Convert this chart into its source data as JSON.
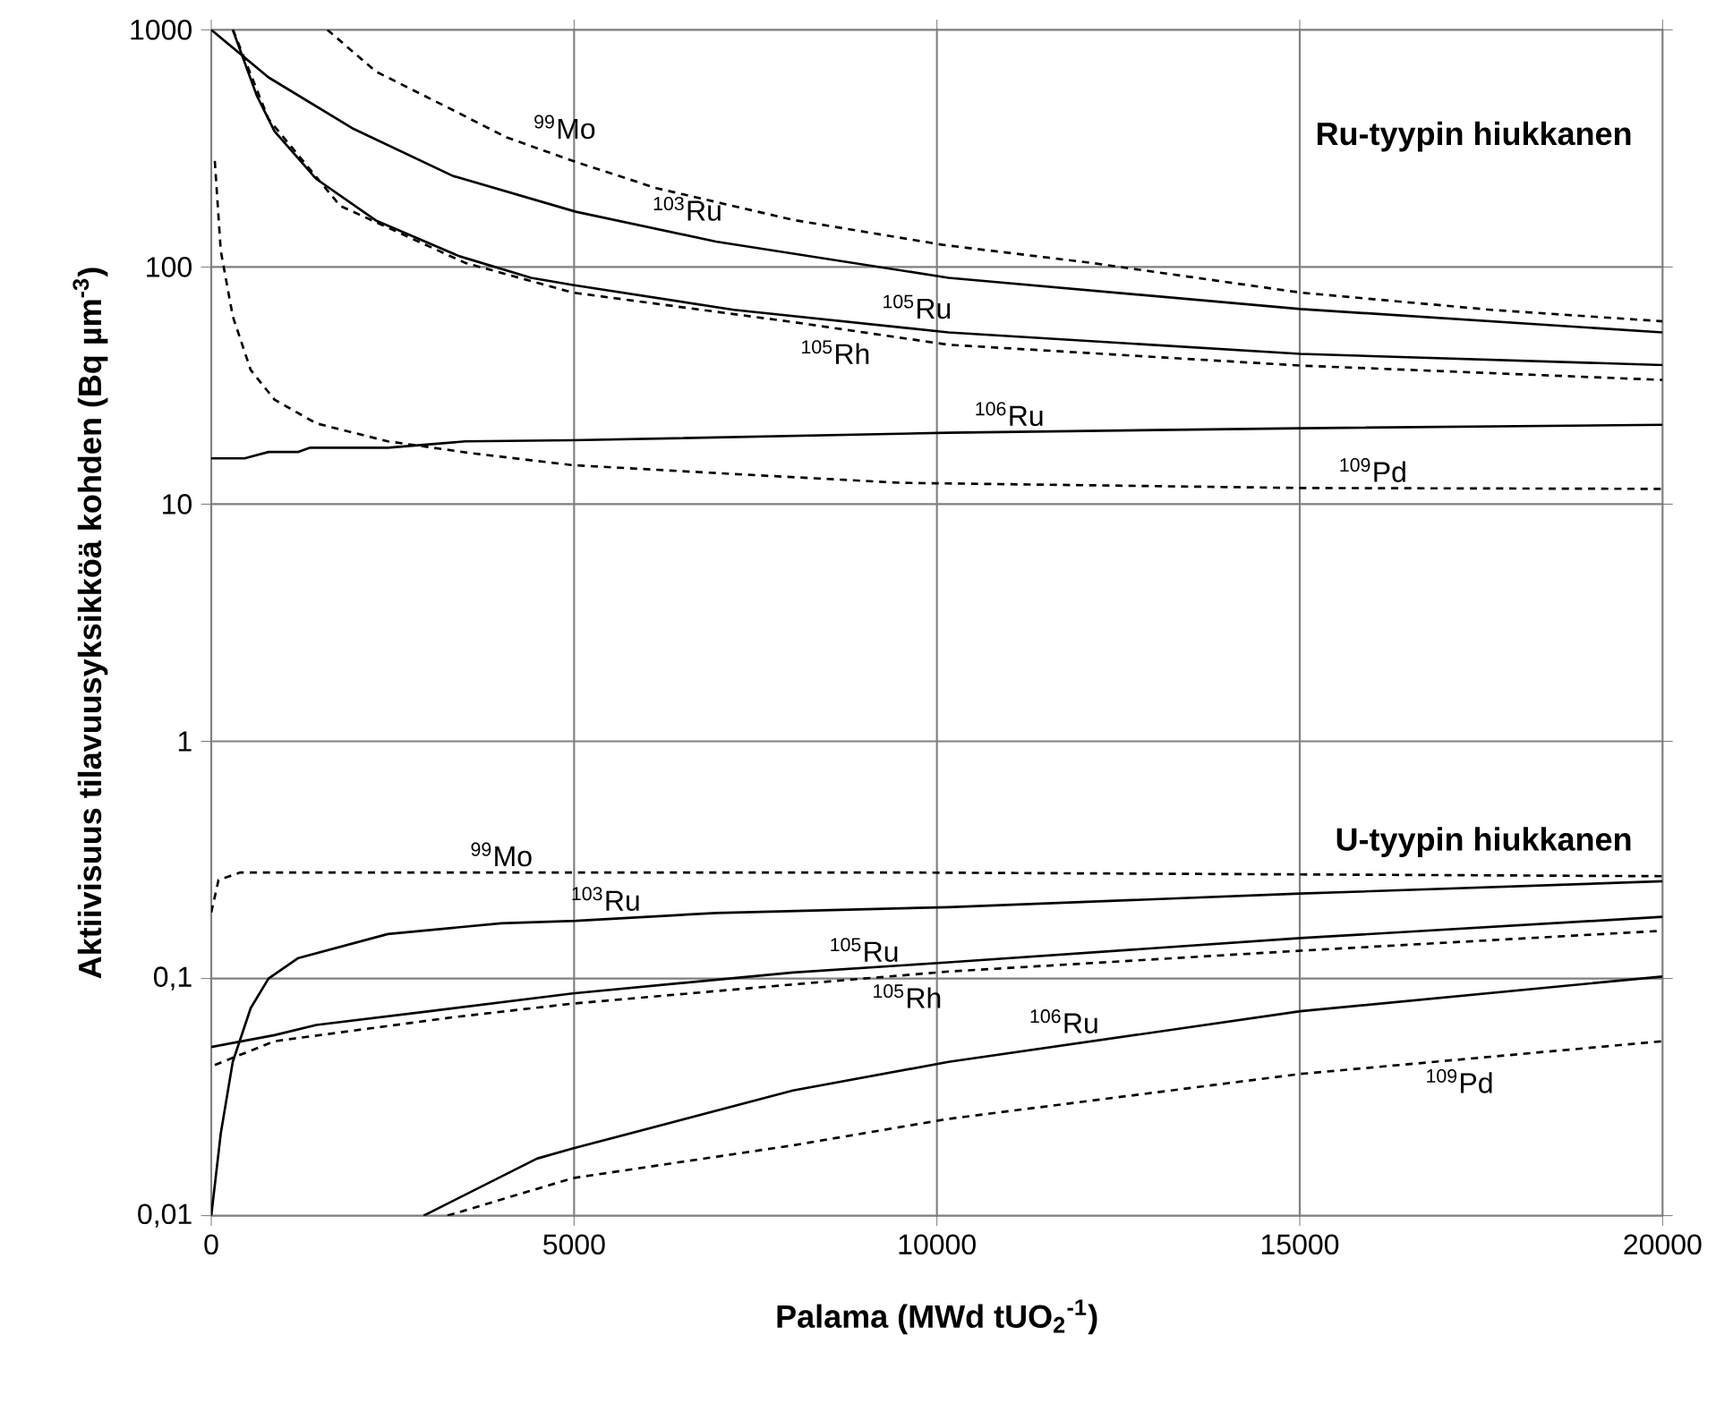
{
  "chart_data": {
    "type": "line",
    "xlabel": "Palama (MWd tUO$_{2}$$^{-1}$)",
    "ylabel": "Aktiivisuus tilavuusyksikköä kohden (Bq µm$^{-3}$)",
    "log": "y",
    "grid": true,
    "legend": false,
    "marker": "none",
    "xlim": [
      0,
      20000
    ],
    "xticks": [
      0,
      5000,
      10000,
      15000,
      20000
    ],
    "ylim": [
      0.01,
      1000
    ],
    "yticks": [
      {
        "value": 0.01,
        "label": "0,01"
      },
      {
        "value": 0.1,
        "label": "0,1"
      },
      1,
      10,
      100,
      1000
    ],
    "series": [
      {
        "name": "$^{99}$Mo",
        "color": "#000000",
        "line_style": "dashed",
        "x": [
          1600,
          2269,
          3255,
          4070,
          4982,
          6133,
          8015,
          10080,
          12133,
          15010,
          17632,
          20000
        ],
        "values": [
          1000,
          667,
          471,
          352,
          280,
          215,
          158,
          124,
          104,
          78,
          66,
          59
        ]
      },
      {
        "name": "$^{103}$Ru",
        "color": "#000000",
        "line_style": "solid",
        "x": [
          0,
          789,
          1941,
          3330,
          5023,
          6955,
          10160,
          15010,
          20000
        ],
        "values": [
          1000,
          630,
          385,
          242,
          171,
          128,
          90,
          66.5,
          53
        ]
      },
      {
        "name": "$^{105}$Ru",
        "color": "#000000",
        "line_style": "solid",
        "x": [
          296,
          625,
          871,
          1448,
          2269,
          3420,
          4407,
          4982,
          7200,
          10160,
          15010,
          20000
        ],
        "values": [
          1000,
          530,
          374,
          235,
          157,
          111,
          90,
          84,
          66,
          53,
          43,
          38.6
        ]
      },
      {
        "name": "$^{105}$Rh",
        "color": "#000000",
        "line_style": "dashed",
        "x": [
          300,
          789,
          1776,
          3502,
          4982,
          8015,
          10160,
          15010,
          20000
        ],
        "values": [
          1000,
          420,
          181,
          104,
          78,
          58.6,
          47,
          38.4,
          33.4
        ]
      },
      {
        "name": "$^{106}$Ru",
        "color": "#000000",
        "line_style": "solid",
        "x": [
          0,
          460,
          789,
          1200,
          1364,
          2434,
          3502,
          4982,
          10160,
          15010,
          20000
        ],
        "values": [
          15.6,
          15.6,
          16.6,
          16.6,
          17.3,
          17.3,
          18.4,
          18.6,
          20,
          20.9,
          21.6
        ]
      },
      {
        "name": "$^{109}$Pd",
        "color": "#000000",
        "line_style": "dashed",
        "x": [
          49,
          131,
          296,
          543,
          871,
          1448,
          2434,
          3585,
          4982,
          7200,
          9500,
          15010,
          20000
        ],
        "values": [
          280,
          117,
          62,
          36.8,
          27.6,
          21.9,
          18.4,
          16.4,
          14.6,
          13.4,
          12.3,
          11.7,
          11.6
        ]
      },
      {
        "name": "$^{99}$Mo",
        "color": "#000000",
        "line_style": "dashed",
        "x": [
          0,
          100,
          400,
          9420,
          20000
        ],
        "values": [
          0.19,
          0.26,
          0.28,
          0.28,
          0.27
        ]
      },
      {
        "name": "$^{103}$Ru",
        "color": "#000000",
        "line_style": "solid",
        "x": [
          0,
          131,
          296,
          543,
          789,
          1200,
          2434,
          3995,
          5023,
          6955,
          10160,
          15010,
          20000
        ],
        "values": [
          0.01,
          0.0222,
          0.0445,
          0.075,
          0.1,
          0.122,
          0.154,
          0.171,
          0.175,
          0.189,
          0.2,
          0.228,
          0.257
        ]
      },
      {
        "name": "$^{105}$Ru",
        "color": "#000000",
        "line_style": "solid",
        "x": [
          0,
          296,
          871,
          1448,
          3009,
          4982,
          8015,
          10160,
          15010,
          20000
        ],
        "values": [
          0.0514,
          0.0535,
          0.0577,
          0.0637,
          0.0728,
          0.0865,
          0.106,
          0.117,
          0.148,
          0.182
        ]
      },
      {
        "name": "$^{105}$Rh",
        "color": "#000000",
        "line_style": "dashed",
        "x": [
          49,
          871,
          3338,
          4982,
          8015,
          10160,
          15010,
          20000
        ],
        "values": [
          0.0432,
          0.0544,
          0.0687,
          0.0784,
          0.0944,
          0.107,
          0.131,
          0.159
        ]
      },
      {
        "name": "$^{106}$Ru",
        "color": "#000000",
        "line_style": "solid",
        "x": [
          2926,
          4488,
          4982,
          8015,
          10160,
          15010,
          20000
        ],
        "values": [
          0.01,
          0.0174,
          0.0192,
          0.0337,
          0.0445,
          0.0728,
          0.102
        ]
      },
      {
        "name": "$^{109}$Pd",
        "color": "#000000",
        "line_style": "dashed",
        "x": [
          3255,
          4982,
          8015,
          10160,
          15010,
          20000
        ],
        "values": [
          0.01,
          0.0144,
          0.0198,
          0.0256,
          0.0396,
          0.0544
        ]
      }
    ],
    "annotations": [
      "**Ru-tyypin hiukkanen**",
      "**U-tyypin hiukkanen**"
    ]
  }
}
